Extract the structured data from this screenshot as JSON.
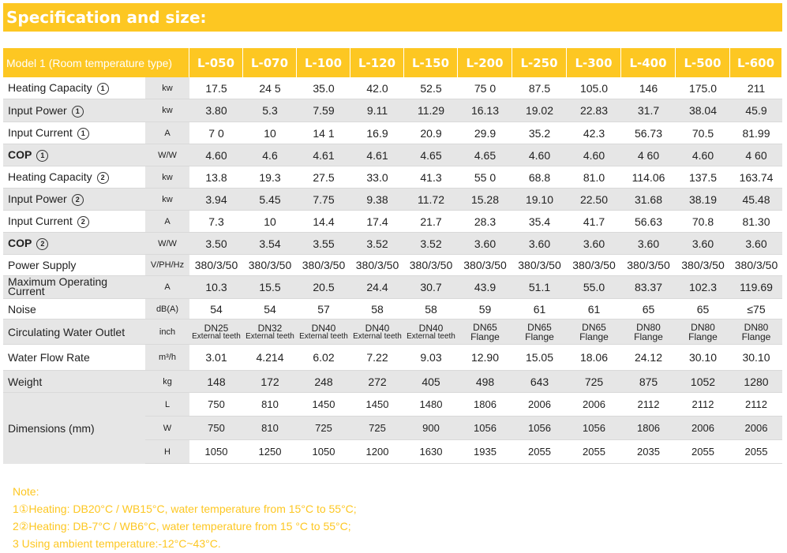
{
  "title": "Specification and size:",
  "header": {
    "model_label": "Model 1 (Room temperature type)",
    "models": [
      "L-050",
      "L-070",
      "L-100",
      "L-120",
      "L-150",
      "L-200",
      "L-250",
      "L-300",
      "L-400",
      "L-500",
      "L-600"
    ]
  },
  "rows": [
    {
      "label": "Heating Capacity",
      "mark": "1",
      "unit": "kw",
      "values": [
        "17.5",
        "24 5",
        "35.0",
        "42.0",
        "52.5",
        "75 0",
        "87.5",
        "105.0",
        "146",
        "175.0",
        "211"
      ]
    },
    {
      "label": "Input Power",
      "mark": "1",
      "unit": "kw",
      "values": [
        "3.80",
        "5.3",
        "7.59",
        "9.11",
        "11.29",
        "16.13",
        "19.02",
        "22.83",
        "31.7",
        "38.04",
        "45.9"
      ]
    },
    {
      "label": "Input Current",
      "mark": "1",
      "unit": "A",
      "values": [
        "7 0",
        "10",
        "14 1",
        "16.9",
        "20.9",
        "29.9",
        "35.2",
        "42.3",
        "56.73",
        "70.5",
        "81.99"
      ]
    },
    {
      "label": "COP",
      "mark": "1",
      "unit": "W/W",
      "bold": true,
      "values": [
        "4.60",
        "4.6",
        "4.61",
        "4.61",
        "4.65",
        "4.65",
        "4.60",
        "4.60",
        "4 60",
        "4.60",
        "4 60"
      ]
    },
    {
      "label": "Heating Capacity",
      "mark": "2",
      "unit": "kw",
      "values": [
        "13.8",
        "19.3",
        "27.5",
        "33.0",
        "41.3",
        "55 0",
        "68.8",
        "81.0",
        "114.06",
        "137.5",
        "163.74"
      ]
    },
    {
      "label": "Input Power",
      "mark": "2",
      "unit": "kw",
      "values": [
        "3.94",
        "5.45",
        "7.75",
        "9.38",
        "11.72",
        "15.28",
        "19.10",
        "22.50",
        "31.68",
        "38.19",
        "45.48"
      ]
    },
    {
      "label": "Input Current",
      "mark": "2",
      "unit": "A",
      "values": [
        "7.3",
        "10",
        "14.4",
        "17.4",
        "21.7",
        "28.3",
        "35.4",
        "41.7",
        "56.63",
        "70.8",
        "81.30"
      ]
    },
    {
      "label": "COP",
      "mark": "2",
      "unit": "W/W",
      "bold": true,
      "values": [
        "3.50",
        "3.54",
        "3.55",
        "3.52",
        "3.52",
        "3.60",
        "3.60",
        "3.60",
        "3.60",
        "3.60",
        "3.60"
      ]
    },
    {
      "label": "Power Supply",
      "mark": "",
      "unit": "V/PH/Hz",
      "values": [
        "380/3/50",
        "380/3/50",
        "380/3/50",
        "380/3/50",
        "380/3/50",
        "380/3/50",
        "380/3/50",
        "380/3/50",
        "380/3/50",
        "380/3/50",
        "380/3/50"
      ]
    },
    {
      "label": "Maximum Operating Current",
      "mark": "",
      "unit": "A",
      "values": [
        "10.3",
        "15.5",
        "20.5",
        "24.4",
        "30.7",
        "43.9",
        "51.1",
        "55.0",
        "83.37",
        "102.3",
        "119.69"
      ]
    },
    {
      "label": "Noise",
      "mark": "",
      "unit": "dB(A)",
      "values": [
        "54",
        "54",
        "57",
        "58",
        "58",
        "59",
        "61",
        "61",
        "65",
        "65",
        "≤75"
      ]
    }
  ],
  "water_outlet": {
    "label": "Circulating Water Outlet",
    "unit": "inch",
    "values": [
      {
        "size": "DN25",
        "type": "External teeth"
      },
      {
        "size": "DN32",
        "type": "External teeth"
      },
      {
        "size": "DN40",
        "type": "External teeth"
      },
      {
        "size": "DN40",
        "type": "External teeth"
      },
      {
        "size": "DN40",
        "type": "External teeth"
      },
      {
        "size": "DN65",
        "type": "Flange"
      },
      {
        "size": "DN65",
        "type": "Flange"
      },
      {
        "size": "DN65",
        "type": "Flange"
      },
      {
        "size": "DN80",
        "type": "Flange"
      },
      {
        "size": "DN80",
        "type": "Flange"
      },
      {
        "size": "DN80",
        "type": "Flange"
      }
    ]
  },
  "flow_rate": {
    "label": "Water Flow Rate",
    "unit": "m³/h",
    "values": [
      "3.01",
      "4.214",
      "6.02",
      "7.22",
      "9.03",
      "12.90",
      "15.05",
      "18.06",
      "24.12",
      "30.10",
      "30.10"
    ]
  },
  "weight": {
    "label": "Weight",
    "unit": "kg",
    "values": [
      "148",
      "172",
      "248",
      "272",
      "405",
      "498",
      "643",
      "725",
      "875",
      "1052",
      "1280"
    ]
  },
  "dimensions": {
    "label": "Dimensions (mm)",
    "rows": [
      {
        "unit": "L",
        "values": [
          "750",
          "810",
          "1450",
          "1450",
          "1480",
          "1806",
          "2006",
          "2006",
          "2112",
          "2112",
          "2112"
        ]
      },
      {
        "unit": "W",
        "values": [
          "750",
          "810",
          "725",
          "725",
          "900",
          "1056",
          "1056",
          "1056",
          "1806",
          "2006",
          "2006"
        ]
      },
      {
        "unit": "H",
        "values": [
          "1050",
          "1250",
          "1050",
          "1200",
          "1630",
          "1935",
          "2055",
          "2055",
          "2035",
          "2055",
          "2055"
        ]
      }
    ]
  },
  "notes": [
    "Note:",
    "1①Heating: DB20°C / WB15°C, water temperature from 15°C to 55°C;",
    "2②Heating: DB-7°C / WB6°C, water temperature from 15 °C to 55°C;",
    "3 Using ambient temperature:-12°C~43°C."
  ]
}
